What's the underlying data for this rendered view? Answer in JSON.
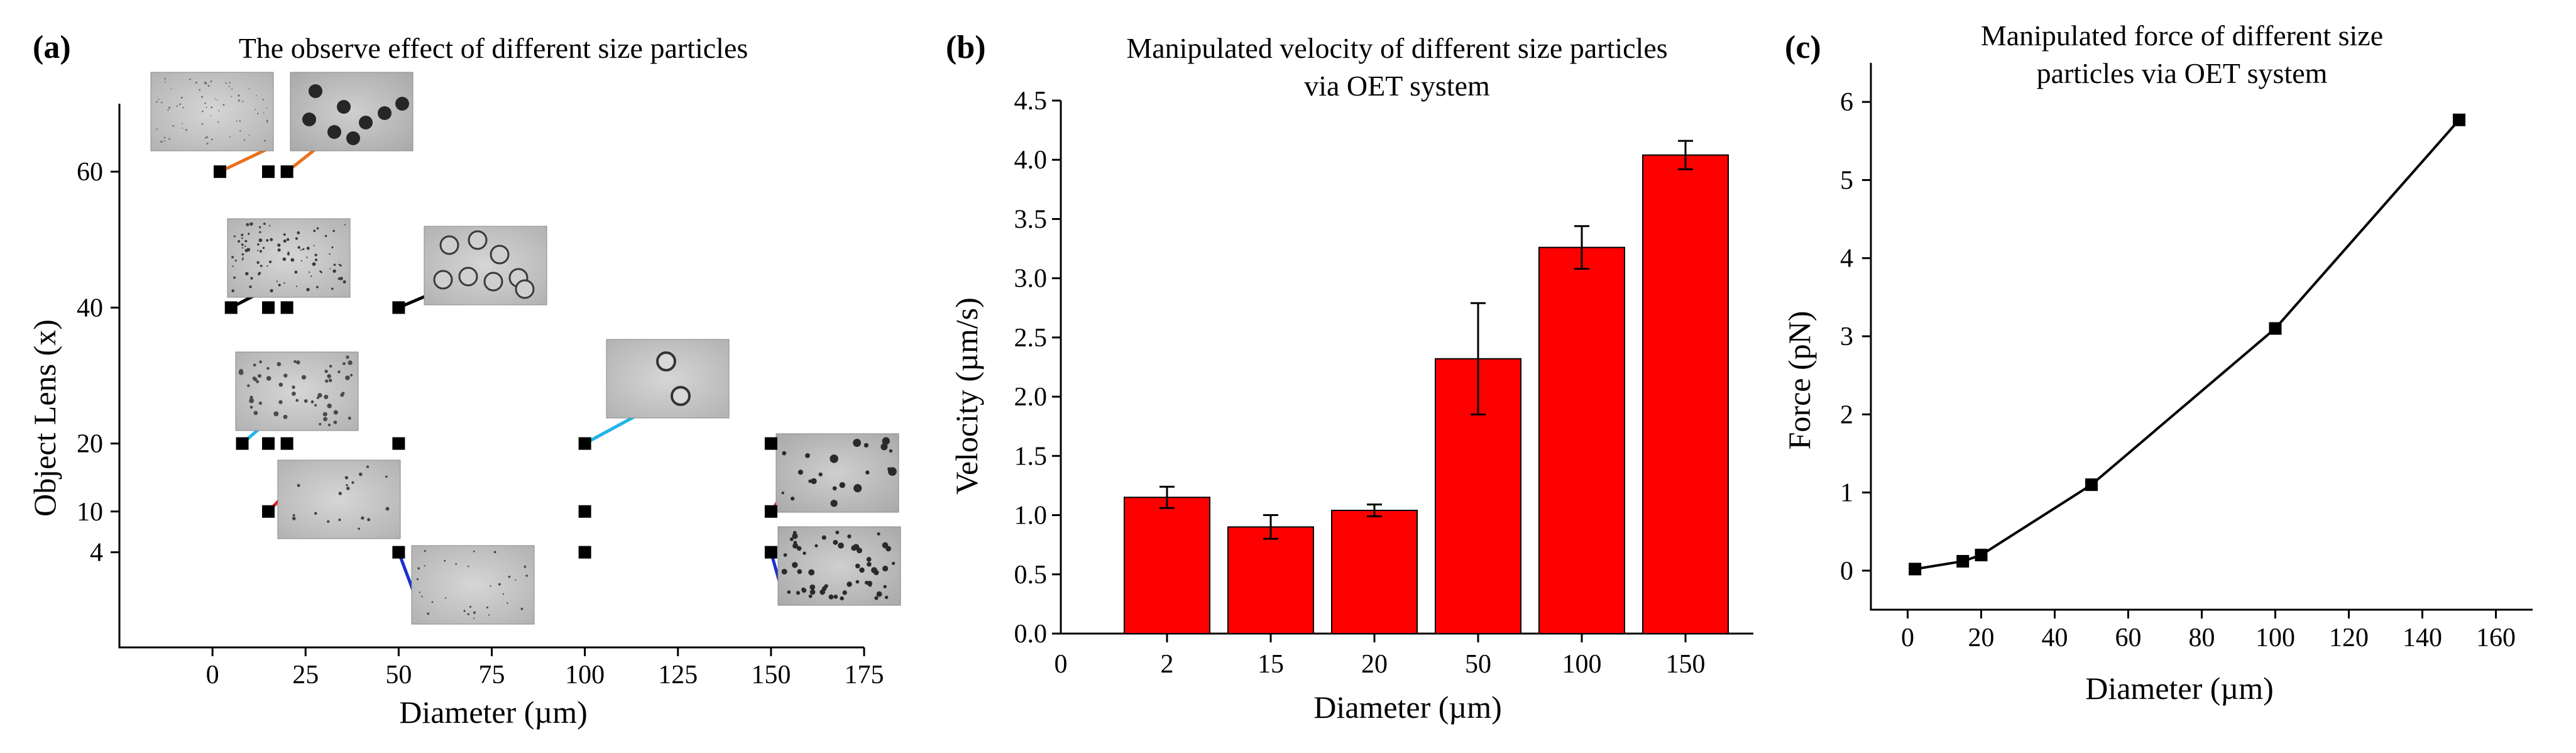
{
  "panels": {
    "a": {
      "letter": "(a)",
      "title": "The observe effect of different size particles",
      "xlabel": "Diameter (µm)",
      "ylabel": "Object Lens (x)"
    },
    "b": {
      "letter": "(b)",
      "title_line1": "Manipulated velocity of different size particles",
      "title_line2": "via OET system",
      "xlabel": "Diameter (µm)",
      "ylabel": "Velocity (µm/s)"
    },
    "c": {
      "letter": "(c)",
      "title_line1": "Manipulated force of different size",
      "title_line2": "particles via OET system",
      "xlabel": "Diameter (µm)",
      "ylabel": "Force (pN)"
    }
  },
  "chart_data": [
    {
      "type": "scatter",
      "panel": "a",
      "title": "The observe effect of different size particles",
      "xlabel": "Diameter (µm)",
      "ylabel": "Object Lens (x)",
      "xticks": [
        0,
        25,
        50,
        75,
        100,
        125,
        150,
        175
      ],
      "yticks": [
        4,
        10,
        20,
        40,
        60
      ],
      "xlim": [
        -25,
        175
      ],
      "ylim": [
        -10,
        70
      ],
      "points": [
        {
          "x": 2,
          "y": 60
        },
        {
          "x": 15,
          "y": 60
        },
        {
          "x": 20,
          "y": 60
        },
        {
          "x": 5,
          "y": 40
        },
        {
          "x": 15,
          "y": 40
        },
        {
          "x": 20,
          "y": 40
        },
        {
          "x": 50,
          "y": 40
        },
        {
          "x": 8,
          "y": 20
        },
        {
          "x": 15,
          "y": 20
        },
        {
          "x": 20,
          "y": 20
        },
        {
          "x": 50,
          "y": 20
        },
        {
          "x": 100,
          "y": 20
        },
        {
          "x": 150,
          "y": 20
        },
        {
          "x": 15,
          "y": 10
        },
        {
          "x": 100,
          "y": 10
        },
        {
          "x": 150,
          "y": 10
        },
        {
          "x": 50,
          "y": 4
        },
        {
          "x": 100,
          "y": 4
        },
        {
          "x": 150,
          "y": 4
        }
      ],
      "connector_colors": {
        "orange": "#e8711a",
        "black": "#000000",
        "cyan": "#1fb3e8",
        "red": "#e82020",
        "blue": "#1a2fd0"
      }
    },
    {
      "type": "bar",
      "panel": "b",
      "title": "Manipulated velocity of different size particles via OET system",
      "xlabel": "Diameter (µm)",
      "ylabel": "Velocity (µm/s)",
      "categories": [
        "2",
        "15",
        "20",
        "50",
        "100",
        "150"
      ],
      "values": [
        1.15,
        0.9,
        1.04,
        2.32,
        3.26,
        4.04
      ],
      "errors": [
        0.09,
        0.1,
        0.05,
        0.47,
        0.18,
        0.12
      ],
      "yticks": [
        "0.0",
        "0.5",
        "1.0",
        "1.5",
        "2.0",
        "2.5",
        "3.0",
        "3.5",
        "4.0",
        "4.5"
      ],
      "ylim": [
        0,
        4.5
      ],
      "x_zero_label": "0",
      "bar_color": "#ff0000"
    },
    {
      "type": "line",
      "panel": "c",
      "title": "Manipulated force of different size particles via OET system",
      "xlabel": "Diameter (µm)",
      "ylabel": "Force (pN)",
      "x": [
        2,
        15,
        20,
        50,
        100,
        150
      ],
      "y": [
        0.02,
        0.12,
        0.2,
        1.1,
        3.1,
        5.77
      ],
      "xticks": [
        0,
        20,
        40,
        60,
        80,
        100,
        120,
        140,
        160
      ],
      "yticks": [
        0,
        1,
        2,
        3,
        4,
        5,
        6
      ],
      "xlim": [
        -10,
        170
      ],
      "ylim": [
        -0.5,
        6.5
      ]
    }
  ]
}
